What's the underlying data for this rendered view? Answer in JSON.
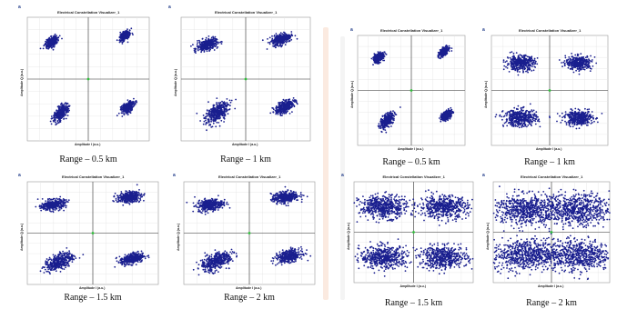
{
  "panel_common": {
    "title": "Electrical Constellation Visualizer_1",
    "xlabel": "Amplitude I (a.u.)",
    "ylabel": "Amplitude Q (a.u.)",
    "tag": "a"
  },
  "chart_data": [
    {
      "type": "scatter",
      "title": "Electrical Constellation Visualizer_1",
      "xlabel": "Amplitude I (a.u.)",
      "ylabel": "Amplitude Q (a.u.)",
      "caption": "Range – 0.5 km",
      "grid": true,
      "color": "#1a1f8f",
      "xlim": [
        -1,
        1
      ],
      "ylim": [
        -1,
        1
      ],
      "clusters": [
        {
          "x": -0.6,
          "y": 0.6,
          "spread": 0.06,
          "tilt": 0.7
        },
        {
          "x": 0.6,
          "y": 0.7,
          "spread": 0.05,
          "tilt": 0.7
        },
        {
          "x": -0.45,
          "y": -0.55,
          "spread": 0.08,
          "tilt": 0.9
        },
        {
          "x": 0.65,
          "y": -0.45,
          "spread": 0.06,
          "tilt": 0.7
        }
      ]
    },
    {
      "type": "scatter",
      "title": "Electrical Constellation Visualizer_1",
      "xlabel": "Amplitude I (a.u.)",
      "ylabel": "Amplitude Q (a.u.)",
      "caption": "Range – 1 km",
      "grid": true,
      "color": "#1a1f8f",
      "xlim": [
        -1,
        1
      ],
      "ylim": [
        -1,
        1
      ],
      "clusters": [
        {
          "x": -0.6,
          "y": 0.55,
          "spread": 0.08,
          "tilt": 0.3
        },
        {
          "x": 0.55,
          "y": 0.65,
          "spread": 0.08,
          "tilt": 0.4
        },
        {
          "x": -0.45,
          "y": -0.55,
          "spread": 0.11,
          "tilt": 0.8
        },
        {
          "x": 0.6,
          "y": -0.45,
          "spread": 0.08,
          "tilt": 0.6
        }
      ]
    },
    {
      "type": "scatter",
      "title": "Electrical Constellation Visualizer_1",
      "xlabel": "Amplitude I (a.u.)",
      "ylabel": "Amplitude Q (a.u.)",
      "caption": "Range – 0.5 km",
      "grid": true,
      "color": "#1a1f8f",
      "xlim": [
        -1,
        1
      ],
      "ylim": [
        -1,
        1
      ],
      "clusters": [
        {
          "x": -0.6,
          "y": 0.6,
          "spread": 0.06,
          "tilt": 0.7
        },
        {
          "x": 0.6,
          "y": 0.7,
          "spread": 0.05,
          "tilt": 0.7
        },
        {
          "x": -0.45,
          "y": -0.55,
          "spread": 0.08,
          "tilt": 0.9
        },
        {
          "x": 0.65,
          "y": -0.45,
          "spread": 0.06,
          "tilt": 0.7
        }
      ]
    },
    {
      "type": "scatter",
      "title": "Electrical Constellation Visualizer_1",
      "xlabel": "Amplitude I (a.u.)",
      "ylabel": "Amplitude Q (a.u.)",
      "caption": "Range – 1 km",
      "grid": true,
      "color": "#1a1f8f",
      "xlim": [
        -1,
        1
      ],
      "ylim": [
        -1,
        1
      ],
      "clusters": [
        {
          "x": -0.5,
          "y": 0.5,
          "spread": 0.12,
          "tilt": 0
        },
        {
          "x": 0.5,
          "y": 0.5,
          "spread": 0.11,
          "tilt": 0
        },
        {
          "x": -0.5,
          "y": -0.5,
          "spread": 0.14,
          "tilt": 0
        },
        {
          "x": 0.5,
          "y": -0.5,
          "spread": 0.12,
          "tilt": 0
        }
      ]
    },
    {
      "type": "scatter",
      "title": "Electrical Constellation Visualizer_1",
      "xlabel": "Amplitude I (a.u.)",
      "ylabel": "Amplitude Q (a.u.)",
      "caption": "Range – 1.5 km",
      "grid": true,
      "color": "#1a1f8f",
      "xlim": [
        -1,
        1
      ],
      "ylim": [
        -1,
        1
      ],
      "clusters": [
        {
          "x": -0.6,
          "y": 0.55,
          "spread": 0.09,
          "tilt": 0.2
        },
        {
          "x": 0.55,
          "y": 0.7,
          "spread": 0.09,
          "tilt": 0.2
        },
        {
          "x": -0.5,
          "y": -0.55,
          "spread": 0.12,
          "tilt": 0.6
        },
        {
          "x": 0.6,
          "y": -0.5,
          "spread": 0.09,
          "tilt": 0.3
        }
      ]
    },
    {
      "type": "scatter",
      "title": "Electrical Constellation Visualizer_1",
      "xlabel": "Amplitude I (a.u.)",
      "ylabel": "Amplitude Q (a.u.)",
      "caption": "Range – 2 km",
      "grid": true,
      "color": "#1a1f8f",
      "xlim": [
        -1,
        1
      ],
      "ylim": [
        -1,
        1
      ],
      "clusters": [
        {
          "x": -0.6,
          "y": 0.55,
          "spread": 0.1,
          "tilt": 0.2
        },
        {
          "x": 0.55,
          "y": 0.7,
          "spread": 0.1,
          "tilt": 0.2
        },
        {
          "x": -0.5,
          "y": -0.55,
          "spread": 0.13,
          "tilt": 0.6
        },
        {
          "x": 0.6,
          "y": -0.45,
          "spread": 0.1,
          "tilt": 0.3
        }
      ]
    },
    {
      "type": "scatter",
      "title": "Electrical Constellation Visualizer_1",
      "xlabel": "Amplitude I (a.u.)",
      "ylabel": "Amplitude Q (a.u.)",
      "caption": "Range – 1.5 km",
      "grid": true,
      "color": "#1a1f8f",
      "xlim": [
        -1,
        1
      ],
      "ylim": [
        -1,
        1
      ],
      "clusters": [
        {
          "x": -0.5,
          "y": 0.5,
          "spread": 0.2,
          "tilt": 0
        },
        {
          "x": 0.5,
          "y": 0.5,
          "spread": 0.2,
          "tilt": 0
        },
        {
          "x": -0.5,
          "y": -0.5,
          "spread": 0.2,
          "tilt": 0
        },
        {
          "x": 0.5,
          "y": -0.5,
          "spread": 0.2,
          "tilt": 0
        }
      ]
    },
    {
      "type": "scatter",
      "title": "Electrical Constellation Visualizer_1",
      "xlabel": "Amplitude I (a.u.)",
      "ylabel": "Amplitude Q (a.u.)",
      "caption": "Range – 2 km",
      "grid": true,
      "color": "#1a1f8f",
      "xlim": [
        -1,
        1
      ],
      "ylim": [
        -1,
        1
      ],
      "clusters": [
        {
          "x": -0.45,
          "y": 0.45,
          "spread": 0.28,
          "tilt": 0
        },
        {
          "x": 0.45,
          "y": 0.45,
          "spread": 0.28,
          "tilt": 0
        },
        {
          "x": -0.45,
          "y": -0.45,
          "spread": 0.28,
          "tilt": 0
        },
        {
          "x": 0.45,
          "y": -0.45,
          "spread": 0.28,
          "tilt": 0
        }
      ]
    }
  ]
}
